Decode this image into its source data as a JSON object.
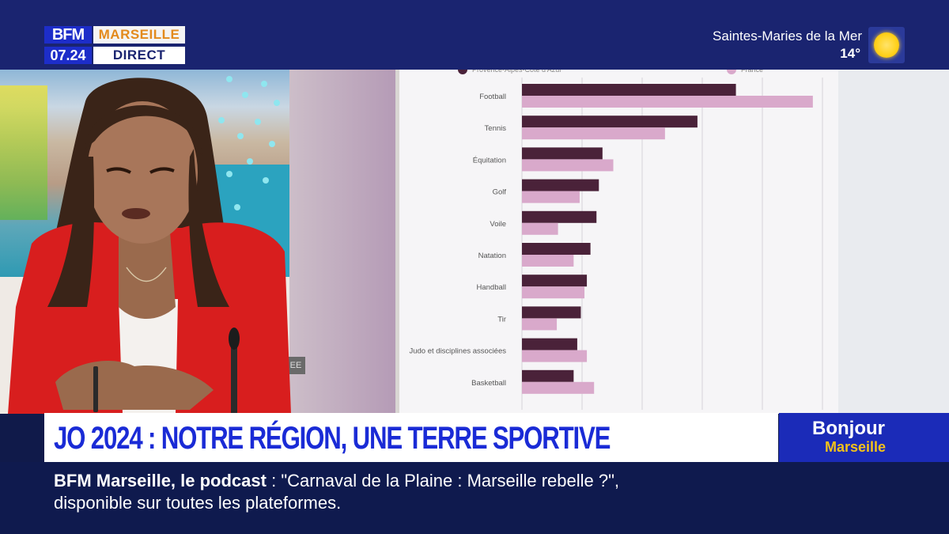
{
  "header": {
    "logo_brand": "BFM",
    "logo_city": "MARSEILLE",
    "clock": "07.24",
    "live_label": "DIRECT",
    "weather_location": "Saintes-Maries de la Mer",
    "weather_temp": "14°",
    "weather_icon": "sun-icon"
  },
  "studio": {
    "tag": "EE"
  },
  "chart_data": {
    "type": "bar",
    "orientation": "horizontal",
    "legend": [
      "Provence-Alpes-Côte d'Azur",
      "France"
    ],
    "categories": [
      "Football",
      "Tennis",
      "Équitation",
      "Golf",
      "Voile",
      "Natation",
      "Handball",
      "Tir",
      "Judo et disciplines associées",
      "Basketball"
    ],
    "series": [
      {
        "name": "Provence-Alpes-Côte d'Azur",
        "color": "#4a2239",
        "values": [
          17.8,
          14.6,
          6.7,
          6.4,
          6.2,
          5.7,
          5.4,
          4.9,
          4.6,
          4.3
        ]
      },
      {
        "name": "France",
        "color": "#d9a9cb",
        "values": [
          24.2,
          11.9,
          7.6,
          4.8,
          3.0,
          4.3,
          5.2,
          2.9,
          5.4,
          6.0
        ]
      }
    ],
    "xlim": [
      0,
      25
    ]
  },
  "headline": {
    "text": "JO 2024 : NOTRE RÉGION, UNE TERRE SPORTIVE"
  },
  "show_badge": {
    "line1": "Bonjour",
    "line2": "Marseille"
  },
  "ticker": {
    "source": "BFM Marseille, le podcast",
    "separator": " : ",
    "text1": "\"Carnaval de la Plaine : Marseille rebelle ?\",",
    "text2": "disponible sur toutes les plateformes."
  }
}
